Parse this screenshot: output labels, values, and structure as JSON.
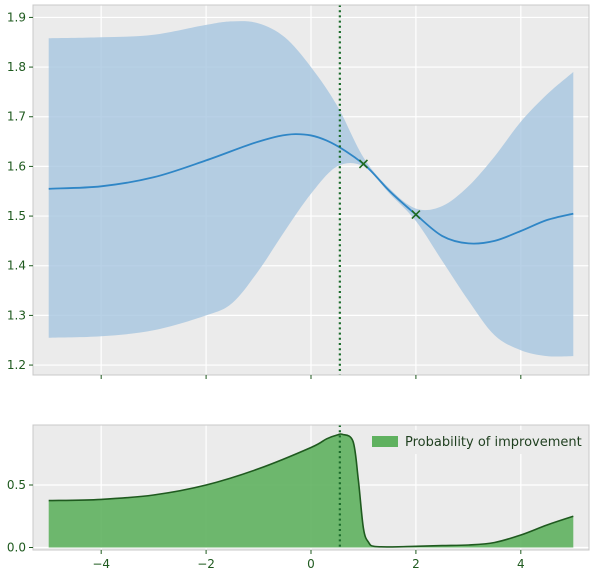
{
  "chart_data": [
    {
      "type": "line",
      "title": "",
      "xlabel": "",
      "ylabel": "",
      "xlim": [
        -5.3,
        5.3
      ],
      "ylim": [
        1.18,
        1.925
      ],
      "grid": true,
      "xticks": [
        -4,
        -2,
        0,
        2,
        4
      ],
      "yticks": [
        1.2,
        1.3,
        1.4,
        1.5,
        1.6,
        1.7,
        1.8,
        1.9
      ],
      "ytick_labels": [
        "1.2",
        "1.3",
        "1.4",
        "1.5",
        "1.6",
        "1.7",
        "1.8",
        "1.9"
      ],
      "series": [
        {
          "kind": "mean",
          "x": [
            -5,
            -4,
            -3,
            -2,
            -1,
            -0.3,
            0.3,
            1,
            1.5,
            2,
            2.5,
            3,
            3.5,
            4,
            4.5,
            5
          ],
          "y": [
            1.555,
            1.56,
            1.578,
            1.612,
            1.65,
            1.665,
            1.652,
            1.605,
            1.55,
            1.503,
            1.46,
            1.445,
            1.45,
            1.47,
            1.492,
            1.505
          ]
        },
        {
          "kind": "confidence_band",
          "x": [
            -5,
            -4,
            -3,
            -2,
            -1.5,
            -1,
            -0.5,
            0,
            0.5,
            1,
            1.5,
            2,
            2.5,
            3,
            3.5,
            4,
            4.5,
            5
          ],
          "upper": [
            1.858,
            1.86,
            1.865,
            1.885,
            1.892,
            1.888,
            1.86,
            1.8,
            1.722,
            1.618,
            1.555,
            1.515,
            1.52,
            1.56,
            1.62,
            1.69,
            1.745,
            1.79
          ],
          "lower": [
            1.255,
            1.258,
            1.27,
            1.3,
            1.325,
            1.39,
            1.47,
            1.545,
            1.6,
            1.6,
            1.545,
            1.49,
            1.41,
            1.33,
            1.26,
            1.23,
            1.218,
            1.218
          ]
        }
      ],
      "observations": [
        {
          "x": 1,
          "y": 1.605
        },
        {
          "x": 2,
          "y": 1.503
        }
      ],
      "vline_x": 0.55
    },
    {
      "type": "area",
      "title": "",
      "xlabel": "",
      "ylabel": "",
      "xlim": [
        -5.3,
        5.3
      ],
      "ylim": [
        -0.02,
        0.98
      ],
      "grid": true,
      "xticks": [
        -4,
        -2,
        0,
        2,
        4
      ],
      "xtick_labels": [
        "−4",
        "−2",
        "0",
        "2",
        "4"
      ],
      "yticks": [
        0.0,
        0.5
      ],
      "ytick_labels": [
        "0.0",
        "0.5"
      ],
      "legend_position": "top-right",
      "series": [
        {
          "name": "Probability of improvement",
          "color": "#5fb15f",
          "x": [
            -5,
            -4,
            -3,
            -2,
            -1,
            0,
            0.3,
            0.5,
            0.6,
            0.8,
            0.9,
            1.0,
            1.1,
            1.2,
            1.5,
            2,
            2.5,
            3,
            3.5,
            4,
            4.5,
            5
          ],
          "y": [
            0.375,
            0.385,
            0.42,
            0.5,
            0.63,
            0.8,
            0.87,
            0.9,
            0.905,
            0.85,
            0.55,
            0.15,
            0.04,
            0.01,
            0.005,
            0.01,
            0.015,
            0.02,
            0.04,
            0.1,
            0.18,
            0.25
          ]
        }
      ],
      "vline_x": 0.55
    }
  ]
}
